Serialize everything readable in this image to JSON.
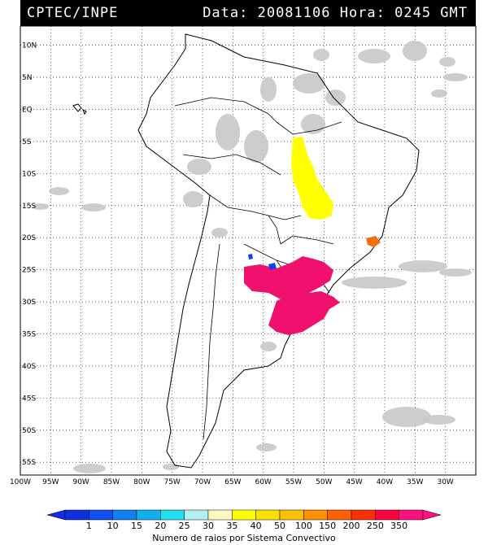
{
  "header": {
    "source": "CPTEC/INPE",
    "datetime": "Data: 20081106 Hora: 0245 GMT"
  },
  "map": {
    "lat_labels": [
      "10N",
      "5N",
      "EQ",
      "5S",
      "10S",
      "15S",
      "20S",
      "25S",
      "30S",
      "35S",
      "40S",
      "45S",
      "50S",
      "55S"
    ],
    "lon_labels": [
      "100W",
      "95W",
      "90W",
      "85W",
      "80W",
      "75W",
      "70W",
      "65W",
      "60W",
      "55W",
      "50W",
      "45W",
      "40W",
      "35W",
      "30W"
    ],
    "lon_range": [
      -100,
      -25
    ],
    "lat_range": [
      -57,
      13
    ]
  },
  "legend": {
    "ticks": [
      "1",
      "10",
      "15",
      "20",
      "25",
      "30",
      "35",
      "40",
      "50",
      "100",
      "150",
      "200",
      "250",
      "350"
    ],
    "colors": [
      "#1030e0",
      "#1050f0",
      "#1080f0",
      "#10b0f0",
      "#20e0f0",
      "#b0f0f0",
      "#fff8c0",
      "#ffff00",
      "#ffe000",
      "#ffc000",
      "#ff9000",
      "#ff6000",
      "#ff3000",
      "#ff0040",
      "#ff1080"
    ],
    "caption": "Numero de raios por Sistema Convectivo"
  },
  "colors": {
    "cloud": "#c8c8c8",
    "storm_south": "#f0106e",
    "storm_central": "#ffff00",
    "storm_southeast": "#f07010",
    "storm_small": "#1040f0"
  }
}
